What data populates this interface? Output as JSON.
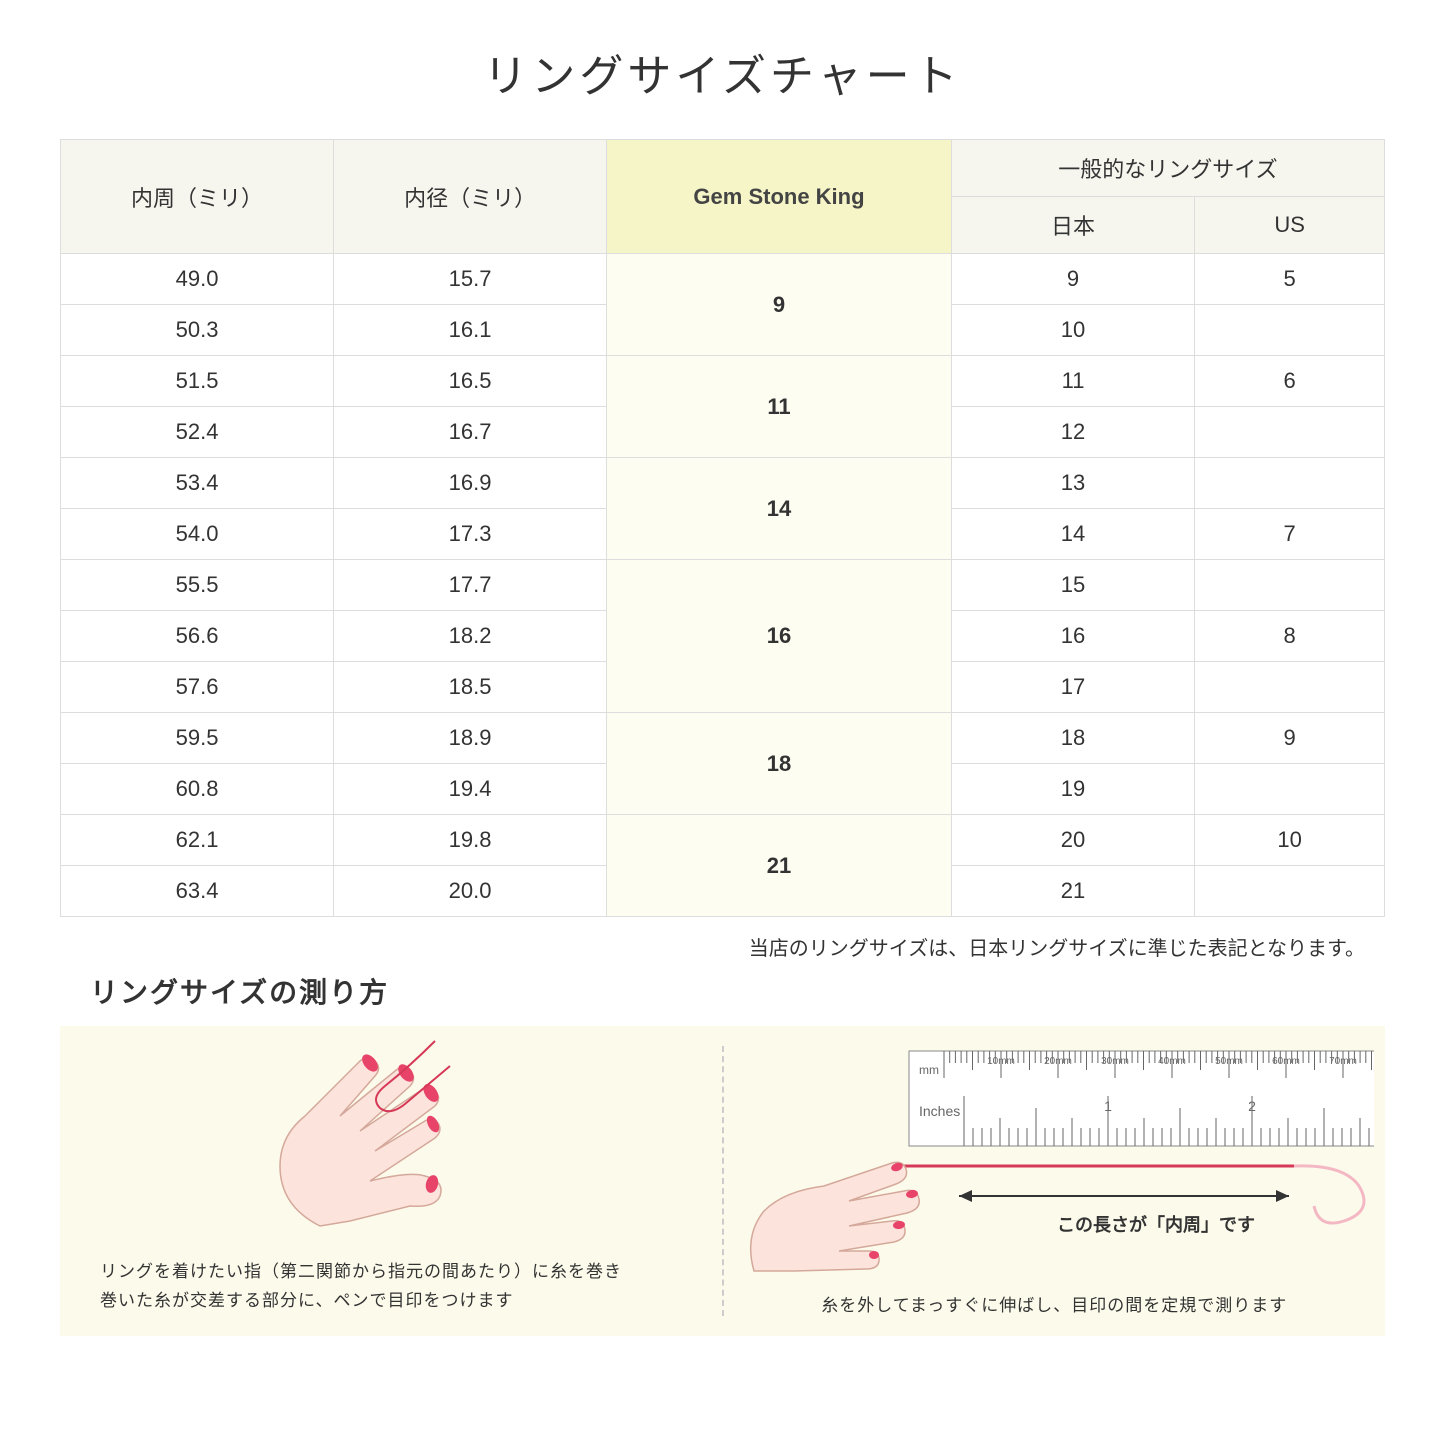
{
  "title": "リングサイズチャート",
  "table": {
    "headers": {
      "circumference": "内周（ミリ）",
      "diameter": "内径（ミリ）",
      "gsk": "Gem Stone King",
      "general_group": "一般的なリングサイズ",
      "japan": "日本",
      "us": "US"
    },
    "header_bg": "#f6f6ef",
    "highlight_header_bg": "#f5f5c8",
    "highlight_cell_bg": "#fdfdf2",
    "border_color": "#dddddd",
    "groups": [
      {
        "gsk": "9",
        "rows": [
          {
            "circ": "49.0",
            "dia": "15.7",
            "jp": "9",
            "us": "5"
          },
          {
            "circ": "50.3",
            "dia": "16.1",
            "jp": "10",
            "us": ""
          }
        ]
      },
      {
        "gsk": "11",
        "rows": [
          {
            "circ": "51.5",
            "dia": "16.5",
            "jp": "11",
            "us": "6"
          },
          {
            "circ": "52.4",
            "dia": "16.7",
            "jp": "12",
            "us": ""
          }
        ]
      },
      {
        "gsk": "14",
        "rows": [
          {
            "circ": "53.4",
            "dia": "16.9",
            "jp": "13",
            "us": ""
          },
          {
            "circ": "54.0",
            "dia": "17.3",
            "jp": "14",
            "us": "7"
          }
        ]
      },
      {
        "gsk": "16",
        "rows": [
          {
            "circ": "55.5",
            "dia": "17.7",
            "jp": "15",
            "us": ""
          },
          {
            "circ": "56.6",
            "dia": "18.2",
            "jp": "16",
            "us": "8"
          },
          {
            "circ": "57.6",
            "dia": "18.5",
            "jp": "17",
            "us": ""
          }
        ]
      },
      {
        "gsk": "18",
        "rows": [
          {
            "circ": "59.5",
            "dia": "18.9",
            "jp": "18",
            "us": "9"
          },
          {
            "circ": "60.8",
            "dia": "19.4",
            "jp": "19",
            "us": ""
          }
        ]
      },
      {
        "gsk": "21",
        "rows": [
          {
            "circ": "62.1",
            "dia": "19.8",
            "jp": "20",
            "us": "10"
          },
          {
            "circ": "63.4",
            "dia": "20.0",
            "jp": "21",
            "us": ""
          }
        ]
      }
    ]
  },
  "note": "当店のリングサイズは、日本リングサイズに準じた表記となります。",
  "howto": {
    "title": "リングサイズの測り方",
    "panel1_caption": "リングを着けたい指（第二関節から指元の間あたり）に糸を巻き\n巻いた糸が交差する部分に、ペンで目印をつけます",
    "panel2_caption": "糸を外してまっすぐに伸ばし、目印の間を定規で測ります",
    "ruler_label": "この長さが「内周」です",
    "ruler_ticks_mm": [
      "10mm",
      "20mm",
      "30mm",
      "40mm",
      "50mm",
      "60mm",
      "70mm"
    ],
    "ruler_inches_label": "Inches",
    "ruler_mm_label": "mm",
    "background_color": "#fcfaeb",
    "hand_skin_color": "#fce4dc",
    "hand_outline_color": "#d4a89a",
    "nail_color": "#e8446a",
    "thread_color": "#d63858",
    "ruler_bg": "#ffffff",
    "ruler_border": "#888888"
  }
}
